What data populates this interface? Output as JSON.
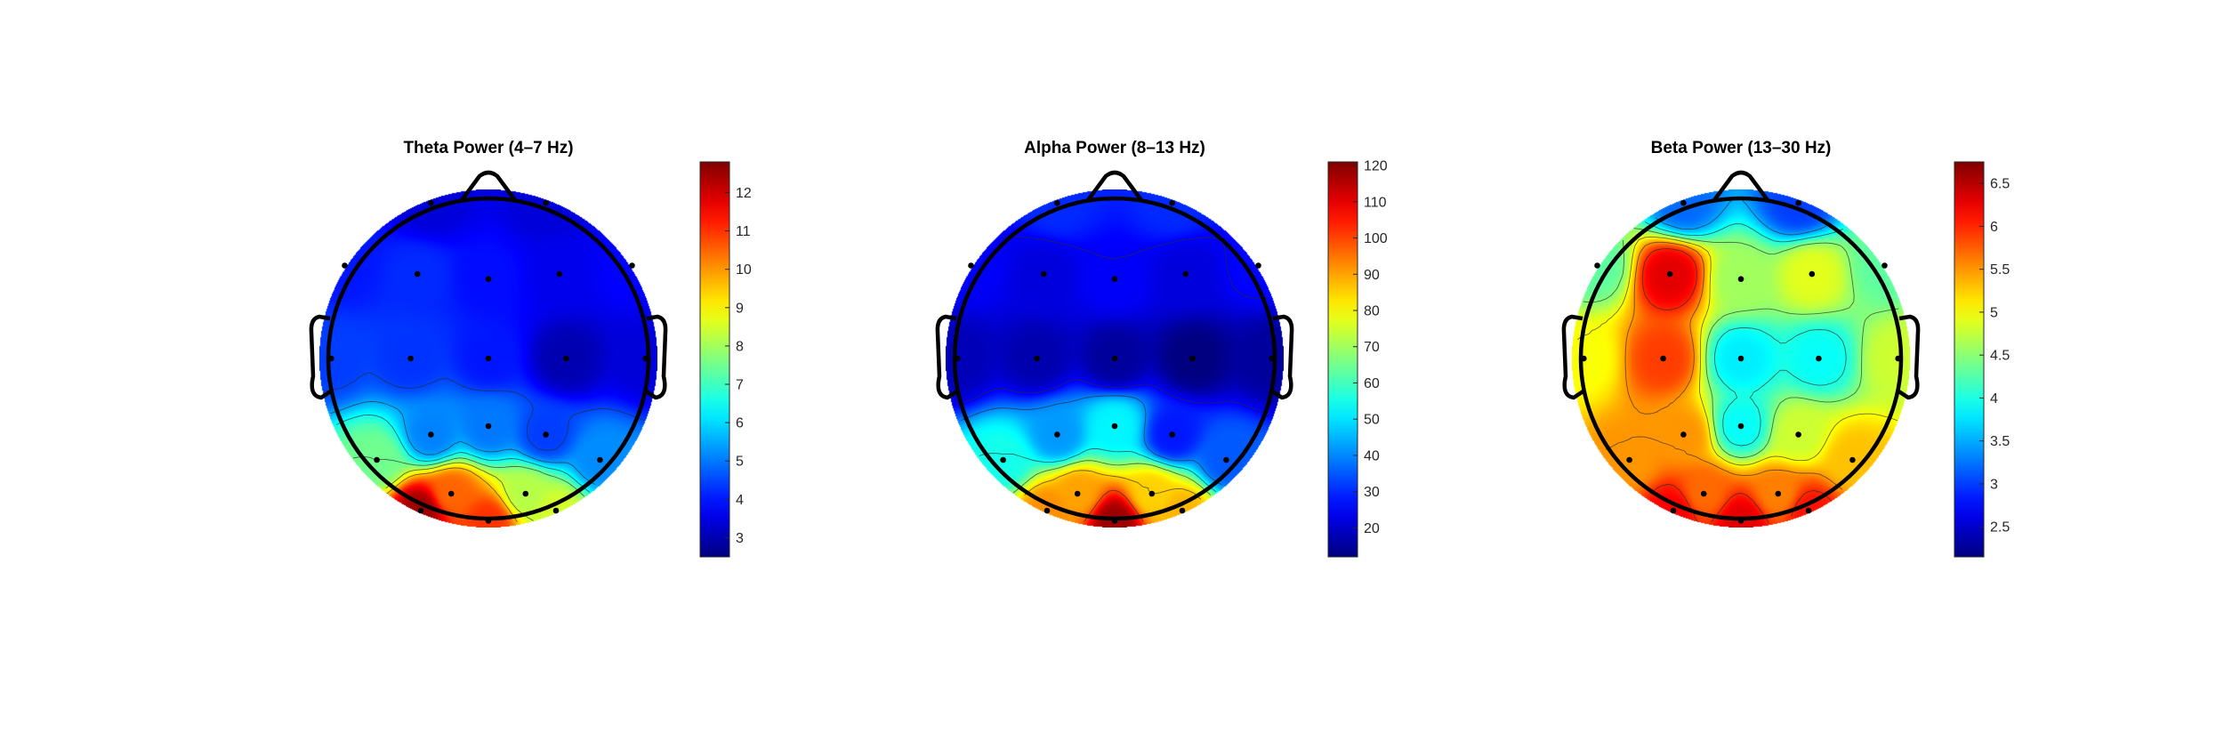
{
  "figure": {
    "background": "#ffffff",
    "colormap": "jet"
  },
  "chart_data": [
    {
      "type": "heatmap",
      "title": "Theta Power (4–7 Hz)",
      "colorbar": {
        "range": [
          2.5,
          12.8
        ],
        "ticks": [
          "3",
          "4",
          "5",
          "6",
          "7",
          "8",
          "9",
          "10",
          "11",
          "12"
        ]
      },
      "electrodes": [
        {
          "x": -0.34,
          "y": 0.92,
          "v": 3.4
        },
        {
          "x": 0.34,
          "y": 0.92,
          "v": 3.4
        },
        {
          "x": -0.85,
          "y": 0.55,
          "v": 4.0
        },
        {
          "x": -0.42,
          "y": 0.5,
          "v": 4.2
        },
        {
          "x": 0.0,
          "y": 0.47,
          "v": 3.9
        },
        {
          "x": 0.42,
          "y": 0.5,
          "v": 3.6
        },
        {
          "x": 0.85,
          "y": 0.55,
          "v": 3.8
        },
        {
          "x": -0.93,
          "y": 0.0,
          "v": 4.4
        },
        {
          "x": -0.46,
          "y": 0.0,
          "v": 4.3
        },
        {
          "x": 0.0,
          "y": 0.0,
          "v": 4.0
        },
        {
          "x": 0.46,
          "y": 0.0,
          "v": 3.0
        },
        {
          "x": 0.93,
          "y": 0.0,
          "v": 3.4
        },
        {
          "x": -0.66,
          "y": -0.6,
          "v": 7.5
        },
        {
          "x": -0.34,
          "y": -0.45,
          "v": 5.1
        },
        {
          "x": 0.0,
          "y": -0.4,
          "v": 5.0
        },
        {
          "x": 0.34,
          "y": -0.45,
          "v": 4.4
        },
        {
          "x": 0.66,
          "y": -0.6,
          "v": 5.2
        },
        {
          "x": -0.22,
          "y": -0.8,
          "v": 10.5
        },
        {
          "x": 0.22,
          "y": -0.8,
          "v": 8.2
        },
        {
          "x": -0.4,
          "y": -0.9,
          "v": 12.5
        },
        {
          "x": 0.0,
          "y": -0.96,
          "v": 11.0
        },
        {
          "x": 0.4,
          "y": -0.9,
          "v": 8.5
        }
      ],
      "contour_levels": [
        4.5,
        5.5,
        6.5,
        7.5,
        8.5,
        9.5
      ]
    },
    {
      "type": "heatmap",
      "title": "Alpha Power (8–13 Hz)",
      "colorbar": {
        "range": [
          12,
          121
        ],
        "ticks": [
          "20",
          "30",
          "40",
          "50",
          "60",
          "70",
          "80",
          "90",
          "100",
          "110",
          "120"
        ]
      },
      "electrodes": [
        {
          "x": -0.34,
          "y": 0.92,
          "v": 30
        },
        {
          "x": 0.34,
          "y": 0.92,
          "v": 30
        },
        {
          "x": -0.85,
          "y": 0.55,
          "v": 25
        },
        {
          "x": -0.42,
          "y": 0.5,
          "v": 22
        },
        {
          "x": 0.0,
          "y": 0.47,
          "v": 25
        },
        {
          "x": 0.42,
          "y": 0.5,
          "v": 22
        },
        {
          "x": 0.85,
          "y": 0.55,
          "v": 26
        },
        {
          "x": -0.93,
          "y": 0.0,
          "v": 18
        },
        {
          "x": -0.46,
          "y": 0.0,
          "v": 17
        },
        {
          "x": 0.0,
          "y": 0.0,
          "v": 15
        },
        {
          "x": 0.46,
          "y": 0.0,
          "v": 12
        },
        {
          "x": 0.93,
          "y": 0.0,
          "v": 15
        },
        {
          "x": -0.66,
          "y": -0.6,
          "v": 55
        },
        {
          "x": -0.34,
          "y": -0.45,
          "v": 42
        },
        {
          "x": 0.0,
          "y": -0.4,
          "v": 52
        },
        {
          "x": 0.34,
          "y": -0.45,
          "v": 28
        },
        {
          "x": 0.66,
          "y": -0.6,
          "v": 35
        },
        {
          "x": -0.22,
          "y": -0.8,
          "v": 90
        },
        {
          "x": 0.22,
          "y": -0.8,
          "v": 85
        },
        {
          "x": -0.4,
          "y": -0.9,
          "v": 92
        },
        {
          "x": 0.0,
          "y": -0.96,
          "v": 118
        },
        {
          "x": 0.4,
          "y": -0.9,
          "v": 88
        }
      ],
      "contour_levels": [
        25,
        40,
        55,
        70,
        85,
        100
      ]
    },
    {
      "type": "heatmap",
      "title": "Beta Power (13–30 Hz)",
      "colorbar": {
        "range": [
          2.15,
          6.75
        ],
        "ticks": [
          "2.5",
          "3",
          "3.5",
          "4",
          "4.5",
          "5",
          "5.5",
          "6",
          "6.5"
        ]
      },
      "electrodes": [
        {
          "x": -0.34,
          "y": 0.92,
          "v": 3.2
        },
        {
          "x": 0.34,
          "y": 0.92,
          "v": 3.0
        },
        {
          "x": -0.85,
          "y": 0.55,
          "v": 4.3
        },
        {
          "x": -0.42,
          "y": 0.5,
          "v": 6.3
        },
        {
          "x": 0.0,
          "y": 0.47,
          "v": 4.6
        },
        {
          "x": 0.42,
          "y": 0.5,
          "v": 4.9
        },
        {
          "x": 0.85,
          "y": 0.55,
          "v": 4.3
        },
        {
          "x": -0.93,
          "y": 0.0,
          "v": 5.0
        },
        {
          "x": -0.46,
          "y": 0.0,
          "v": 5.9
        },
        {
          "x": 0.0,
          "y": 0.0,
          "v": 3.8
        },
        {
          "x": 0.46,
          "y": 0.0,
          "v": 3.9
        },
        {
          "x": 0.93,
          "y": 0.0,
          "v": 4.8
        },
        {
          "x": -0.66,
          "y": -0.6,
          "v": 5.5
        },
        {
          "x": -0.34,
          "y": -0.45,
          "v": 5.5
        },
        {
          "x": 0.0,
          "y": -0.4,
          "v": 3.9
        },
        {
          "x": 0.34,
          "y": -0.45,
          "v": 4.8
        },
        {
          "x": 0.66,
          "y": -0.6,
          "v": 5.3
        },
        {
          "x": -0.22,
          "y": -0.8,
          "v": 5.7
        },
        {
          "x": 0.22,
          "y": -0.8,
          "v": 5.6
        },
        {
          "x": -0.4,
          "y": -0.9,
          "v": 6.2
        },
        {
          "x": 0.0,
          "y": -0.96,
          "v": 6.3
        },
        {
          "x": 0.4,
          "y": -0.9,
          "v": 6.1
        }
      ],
      "contour_levels": [
        3.5,
        4.0,
        4.5,
        5.0,
        5.5,
        6.0,
        6.5
      ]
    }
  ]
}
